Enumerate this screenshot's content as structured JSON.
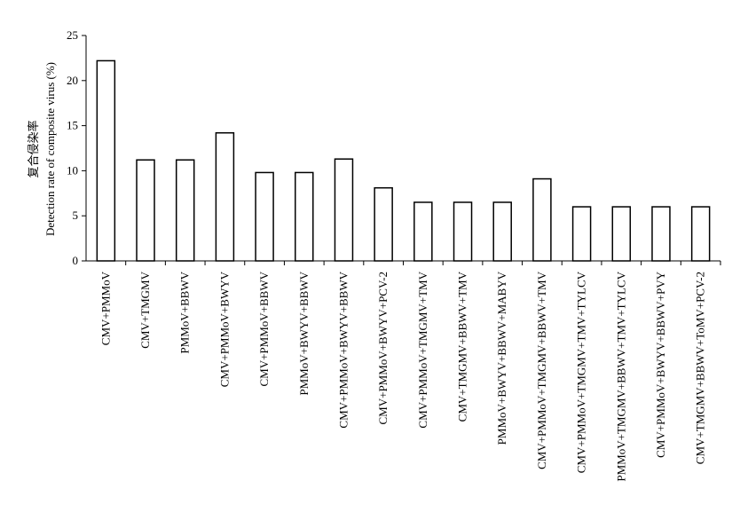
{
  "chart_data": {
    "type": "bar",
    "ylabel_cn": "复合侵染率",
    "ylabel": "Detection rate of composite virus (%)",
    "xlabel": "",
    "ylim": [
      0,
      25
    ],
    "yticks": [
      "0",
      "5",
      "10",
      "15",
      "20",
      "25"
    ],
    "grid": false,
    "categories": [
      "CMV+PMMoV",
      "CMV+TMGMV",
      "PMMoV+BBWV",
      "CMV+PMMoV+BWYV",
      "CMV+PMMoV+BBWV",
      "PMMoV+BWYV+BBWV",
      "CMV+PMMoV+BWYV+BBWV",
      "CMV+PMMoV+BWYV+PCV-2",
      "CMV+PMMoV+TMGMV+TMV",
      "CMV+TMGMV+BBWV+TMV",
      "PMMoV+BWYV+BBWV+MABYV",
      "CMV+PMMoV+TMGMV+BBWV+TMV",
      "CMV+PMMoV+TMGMV+TMV+TYLCV",
      "PMMoV+TMGMV+BBWV+TMV+TYLCV",
      "CMV+PMMoV+BWYV+BBWV+PVY",
      "CMV+TMGMV+BBWV+ToMV+PCV-2"
    ],
    "values": [
      22.2,
      11.2,
      11.2,
      14.2,
      9.8,
      9.8,
      11.3,
      8.1,
      6.5,
      6.5,
      6.5,
      9.1,
      6.0,
      6.0,
      6.0,
      6.0
    ]
  }
}
